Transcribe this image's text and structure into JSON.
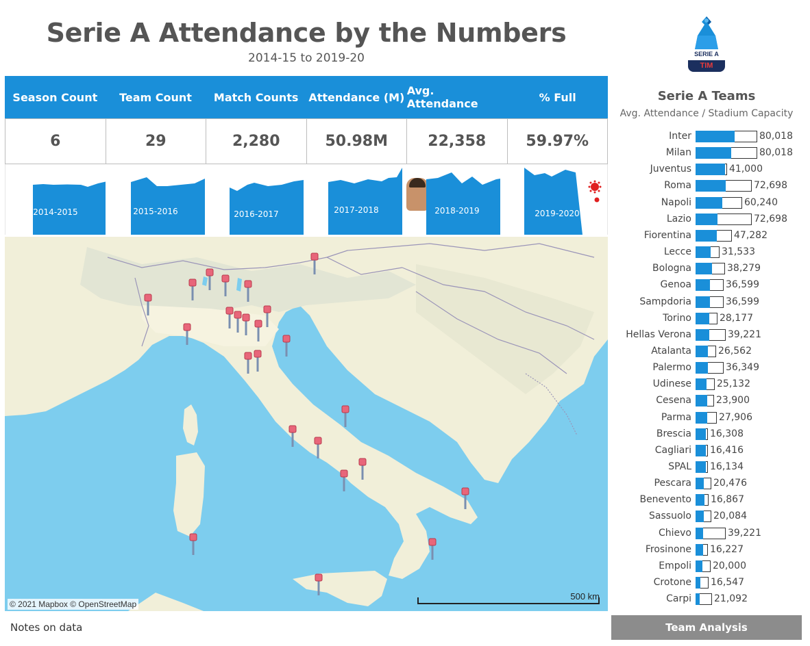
{
  "header": {
    "title": "Serie A Attendance by the Numbers",
    "subtitle": "2014-15 to 2019-20"
  },
  "logo": {
    "top_text": "SERIE A",
    "bottom_text": "TIM"
  },
  "kpis": [
    {
      "label": "Season Count",
      "value": "6"
    },
    {
      "label": "Team Count",
      "value": "29"
    },
    {
      "label": "Match Counts",
      "value": "2,280"
    },
    {
      "label": "Attendance (M)",
      "value": "50.98M"
    },
    {
      "label": "Avg. Attendance",
      "value": "22,358"
    },
    {
      "label": "% Full",
      "value": "59.97%"
    }
  ],
  "seasons": [
    "2014-2015",
    "2015-2016",
    "2016-2017",
    "2017-2018",
    "2018-2019",
    "2019-2020"
  ],
  "map": {
    "credit": "© 2021 Mapbox  © OpenStreetMap",
    "scale": "500 km"
  },
  "teams_panel": {
    "title": "Serie A Teams",
    "subtitle": "Avg. Attendance / Stadium Capacity",
    "chart_data": {
      "type": "bar",
      "categories": [
        "Inter",
        "Milan",
        "Juventus",
        "Roma",
        "Napoli",
        "Lazio",
        "Fiorentina",
        "Lecce",
        "Bologna",
        "Genoa",
        "Sampdoria",
        "Torino",
        "Hellas Verona",
        "Atalanta",
        "Palermo",
        "Udinese",
        "Cesena",
        "Parma",
        "Brescia",
        "Cagliari",
        "SPAL",
        "Pescara",
        "Benevento",
        "Sassuolo",
        "Chievo",
        "Frosinone",
        "Empoli",
        "Crotone",
        "Carpi"
      ],
      "capacity_labels": [
        "80,018",
        "80,018",
        "41,000",
        "72,698",
        "60,240",
        "72,698",
        "47,282",
        "31,533",
        "38,279",
        "36,599",
        "36,599",
        "28,177",
        "39,221",
        "26,562",
        "36,349",
        "25,132",
        "23,900",
        "27,906",
        "16,308",
        "16,416",
        "16,134",
        "20,476",
        "16,867",
        "20,084",
        "39,221",
        "16,227",
        "20,000",
        "16,547",
        "21,092"
      ],
      "capacity": [
        80018,
        80018,
        41000,
        72698,
        60240,
        72698,
        47282,
        31533,
        38279,
        36599,
        36599,
        28177,
        39221,
        26562,
        36349,
        25132,
        23900,
        27906,
        16308,
        16416,
        16134,
        20476,
        16867,
        20084,
        39221,
        16227,
        20000,
        16547,
        21092
      ],
      "avg_attendance": [
        50500,
        46000,
        38500,
        39500,
        35000,
        28500,
        27500,
        20000,
        21500,
        19000,
        19000,
        18000,
        17500,
        16000,
        16000,
        14500,
        15500,
        15500,
        13500,
        13500,
        13500,
        10500,
        11500,
        10500,
        10000,
        9500,
        9000,
        6500,
        5000
      ]
    }
  },
  "footer": {
    "notes": "Notes on data",
    "team_analysis": "Team Analysis"
  }
}
